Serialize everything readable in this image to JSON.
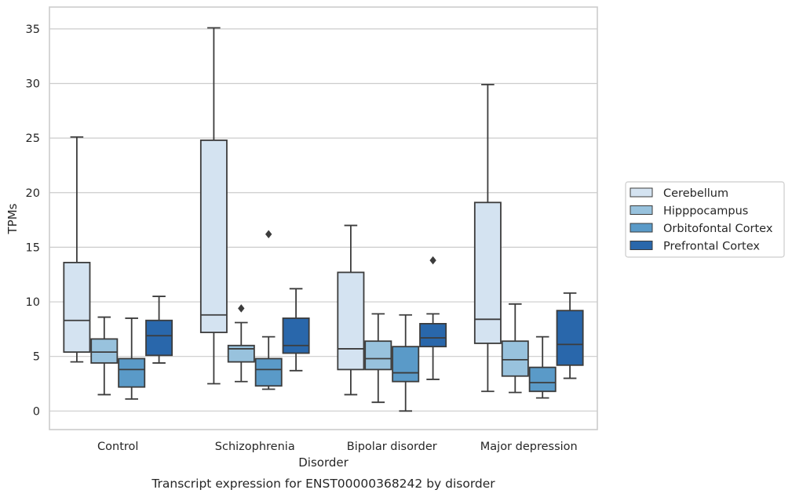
{
  "colors": {
    "Cerebellum": "#d4e3f1",
    "Hipppocampus": "#98c2dd",
    "Orbitofontal Cortex": "#5a9ac8",
    "Prefrontal Cortex": "#2967ab",
    "line": "#3c3c3c",
    "grid": "#cccccc",
    "frame": "#cccccc"
  },
  "chart_data": {
    "type": "box",
    "title": "",
    "caption": "Transcript expression for ENST00000368242 by disorder",
    "xlabel": "Disorder",
    "ylabel": "TPMs",
    "ylim": [
      -1.7,
      37
    ],
    "yticks": [
      0,
      5,
      10,
      15,
      20,
      25,
      30,
      35
    ],
    "grid": "horizontal",
    "legend_position": "right",
    "categories": [
      "Control",
      "Schizophrenia",
      "Bipolar disorder",
      "Major depression"
    ],
    "series": [
      {
        "name": "Cerebellum",
        "boxes": [
          {
            "whislo": 4.5,
            "q1": 5.4,
            "med": 8.3,
            "q3": 13.6,
            "whishi": 25.1,
            "fliers": []
          },
          {
            "whislo": 2.5,
            "q1": 7.2,
            "med": 8.8,
            "q3": 24.8,
            "whishi": 35.1,
            "fliers": []
          },
          {
            "whislo": 1.5,
            "q1": 3.8,
            "med": 5.7,
            "q3": 12.7,
            "whishi": 17.0,
            "fliers": []
          },
          {
            "whislo": 1.8,
            "q1": 6.2,
            "med": 8.4,
            "q3": 19.1,
            "whishi": 29.9,
            "fliers": []
          }
        ]
      },
      {
        "name": "Hipppocampus",
        "boxes": [
          {
            "whislo": 1.5,
            "q1": 4.4,
            "med": 5.4,
            "q3": 6.6,
            "whishi": 8.6,
            "fliers": []
          },
          {
            "whislo": 2.7,
            "q1": 4.5,
            "med": 5.7,
            "q3": 6.0,
            "whishi": 8.1,
            "fliers": [
              9.4
            ]
          },
          {
            "whislo": 0.8,
            "q1": 3.8,
            "med": 4.8,
            "q3": 6.4,
            "whishi": 8.9,
            "fliers": []
          },
          {
            "whislo": 1.7,
            "q1": 3.2,
            "med": 4.7,
            "q3": 6.4,
            "whishi": 9.8,
            "fliers": []
          }
        ]
      },
      {
        "name": "Orbitofontal Cortex",
        "boxes": [
          {
            "whislo": 1.1,
            "q1": 2.2,
            "med": 3.8,
            "q3": 4.8,
            "whishi": 8.5,
            "fliers": []
          },
          {
            "whislo": 2.0,
            "q1": 2.3,
            "med": 3.8,
            "q3": 4.8,
            "whishi": 6.8,
            "fliers": [
              16.2
            ]
          },
          {
            "whislo": 0.0,
            "q1": 2.7,
            "med": 3.5,
            "q3": 5.9,
            "whishi": 8.8,
            "fliers": []
          },
          {
            "whislo": 1.2,
            "q1": 1.8,
            "med": 2.6,
            "q3": 4.0,
            "whishi": 6.8,
            "fliers": []
          }
        ]
      },
      {
        "name": "Prefrontal Cortex",
        "boxes": [
          {
            "whislo": 4.4,
            "q1": 5.1,
            "med": 6.9,
            "q3": 8.3,
            "whishi": 10.5,
            "fliers": []
          },
          {
            "whislo": 3.7,
            "q1": 5.3,
            "med": 6.0,
            "q3": 8.5,
            "whishi": 11.2,
            "fliers": []
          },
          {
            "whislo": 2.9,
            "q1": 5.9,
            "med": 6.7,
            "q3": 8.0,
            "whishi": 8.9,
            "fliers": [
              13.8
            ]
          },
          {
            "whislo": 3.0,
            "q1": 4.2,
            "med": 6.1,
            "q3": 9.2,
            "whishi": 10.8,
            "fliers": []
          }
        ]
      }
    ]
  }
}
